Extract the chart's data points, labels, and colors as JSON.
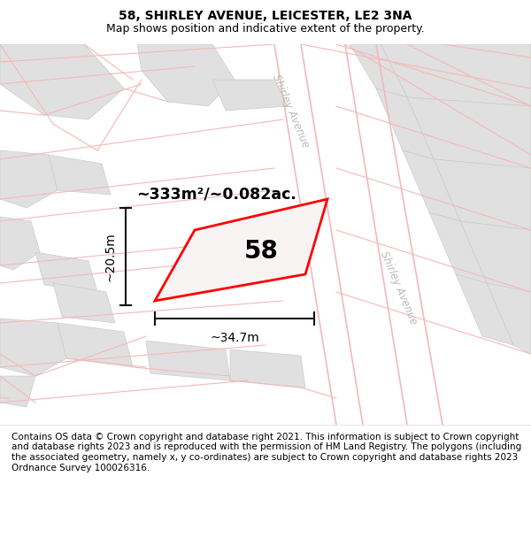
{
  "title": "58, SHIRLEY AVENUE, LEICESTER, LE2 3NA",
  "subtitle": "Map shows position and indicative extent of the property.",
  "area_text": "~333m²/~0.082ac.",
  "number_label": "58",
  "width_label": "~34.7m",
  "height_label": "~20.5m",
  "street_label_1": "Shirley Avenue",
  "street_label_2": "Shirley Avenue",
  "map_bg": "#ffffff",
  "block_fill": "#e0e0e0",
  "block_edge": "#cccccc",
  "road_line_color": "#f5b8b8",
  "plot_fill": "#f0eeee",
  "plot_edge": "#ff0000",
  "dim_line_color": "#111111",
  "street_text_color": "#bbbbbb",
  "footer_text": "Contains OS data © Crown copyright and database right 2021. This information is subject to Crown copyright and database rights 2023 and is reproduced with the permission of HM Land Registry. The polygons (including the associated geometry, namely x, y co-ordinates) are subject to Crown copyright and database rights 2023 Ordnance Survey 100026316.",
  "title_fontsize": 10,
  "subtitle_fontsize": 9,
  "footer_fontsize": 7.5
}
